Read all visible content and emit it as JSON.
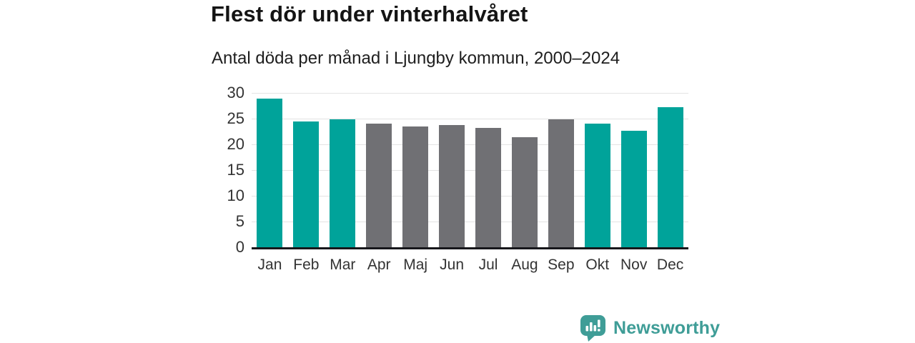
{
  "header": {
    "title": "Flest dör under vinterhalvåret",
    "subtitle": "Antal döda per månad i Ljungby kommun, 2000–2024"
  },
  "chart_data": {
    "type": "bar",
    "title": "Flest dör under vinterhalvåret",
    "subtitle": "Antal döda per månad i Ljungby kommun, 2000–2024",
    "categories": [
      "Jan",
      "Feb",
      "Mar",
      "Apr",
      "Maj",
      "Jun",
      "Jul",
      "Aug",
      "Sep",
      "Okt",
      "Nov",
      "Dec"
    ],
    "values": [
      28.9,
      24.4,
      24.9,
      24.0,
      23.5,
      23.8,
      23.2,
      21.4,
      24.8,
      24.0,
      22.7,
      27.2
    ],
    "bar_season": [
      "winter",
      "winter",
      "winter",
      "summer",
      "summer",
      "summer",
      "summer",
      "summer",
      "summer",
      "winter",
      "winter",
      "winter"
    ],
    "xlabel": "",
    "ylabel": "",
    "ylim": [
      0,
      30
    ],
    "yticks": [
      0,
      5,
      10,
      15,
      20,
      25,
      30
    ],
    "grid": true,
    "legend": "none"
  },
  "colors": {
    "winter_bar": "#00a39a",
    "summer_bar": "#707074",
    "gridline": "#e3e3e3",
    "axis": "#17171b",
    "logo_teal": "#3f9d97",
    "title_text": "#141414",
    "tick_text": "#333333"
  },
  "branding": {
    "logo_text": "Newsworthy",
    "logo_icon": "speech-bubble-with-bar-chart-and-exclamation"
  }
}
